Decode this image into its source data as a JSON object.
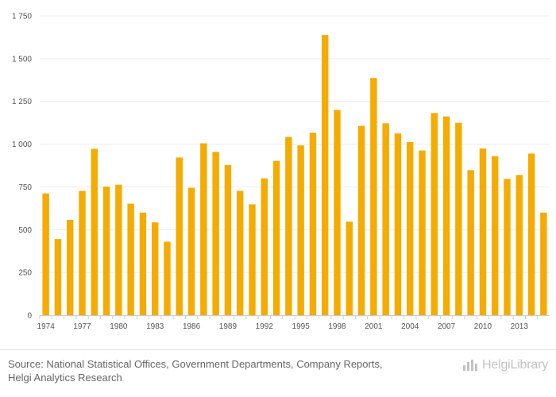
{
  "chart_data": {
    "type": "bar",
    "title": "",
    "xlabel": "",
    "ylabel": "",
    "ylim": [
      0,
      1750
    ],
    "yticks": [
      0,
      250,
      500,
      750,
      1000,
      1250,
      1500,
      1750
    ],
    "ytick_labels": [
      "0",
      "250",
      "500",
      "750",
      "1 000",
      "1 250",
      "1 500",
      "1 750"
    ],
    "grid": true,
    "bar_color": "#f5ab00",
    "categories": [
      1974,
      1975,
      1976,
      1977,
      1978,
      1979,
      1980,
      1981,
      1982,
      1983,
      1984,
      1985,
      1986,
      1987,
      1988,
      1989,
      1990,
      1991,
      1992,
      1993,
      1994,
      1995,
      1996,
      1997,
      1998,
      1999,
      2000,
      2001,
      2002,
      2003,
      2004,
      2005,
      2006,
      2007,
      2008,
      2009,
      2010,
      2011,
      2012,
      2013,
      2014,
      2015
    ],
    "values": [
      712,
      445,
      557,
      727,
      973,
      752,
      763,
      652,
      600,
      543,
      430,
      922,
      745,
      1005,
      955,
      878,
      727,
      648,
      800,
      902,
      1042,
      993,
      1067,
      1638,
      1200,
      547,
      1107,
      1387,
      1122,
      1063,
      1012,
      963,
      1182,
      1162,
      1125,
      848,
      975,
      930,
      797,
      820,
      945,
      600
    ],
    "x_tick_labels": [
      "1974",
      "1977",
      "1980",
      "1983",
      "1986",
      "1989",
      "1992",
      "1995",
      "1998",
      "2001",
      "2004",
      "2007",
      "2010",
      "2013"
    ]
  },
  "footer": {
    "source_line1": "Source: National Statistical Offices, Government Departments, Company Reports,",
    "source_line2": "Helgi Analytics Research",
    "logo_text": "HelgiLibrary"
  }
}
